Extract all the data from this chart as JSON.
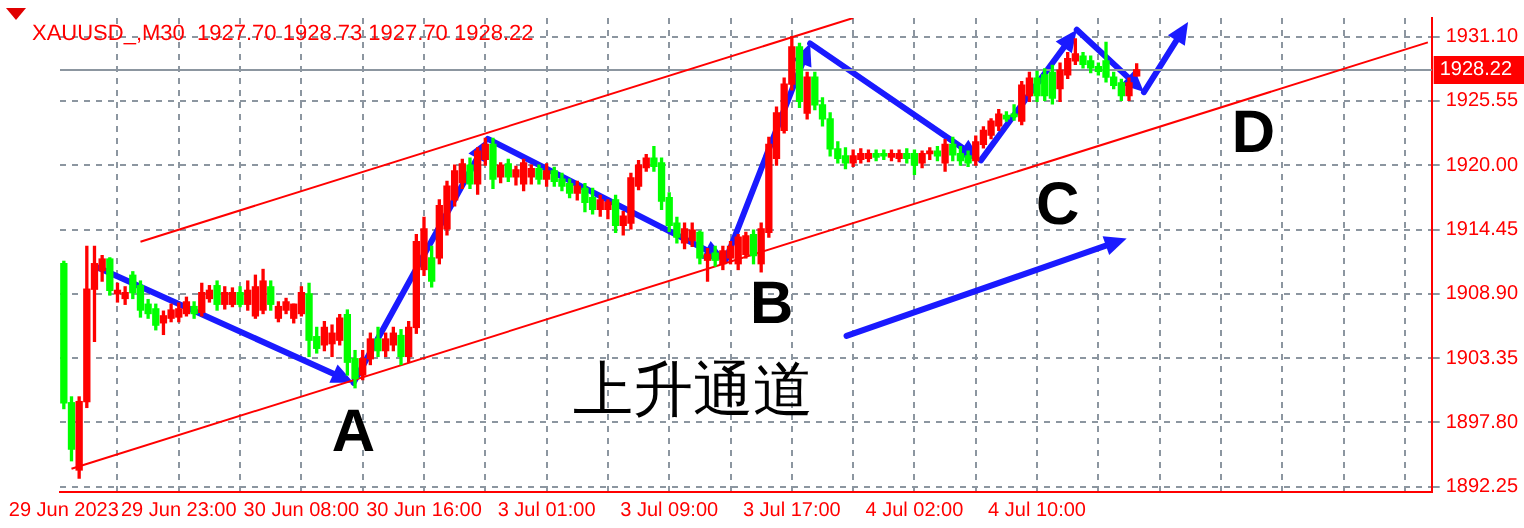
{
  "chart_data": {
    "type": "candlestick",
    "title": "XAUUSD_,M30  1927.70 1928.73 1927.70 1928.22",
    "categories": [
      "29 Jun 2023",
      null,
      null,
      null,
      null,
      null,
      null,
      null,
      null,
      null,
      null,
      null,
      null,
      null,
      null,
      "29 Jun 23:00",
      null,
      null,
      null,
      null,
      null,
      null,
      null,
      null,
      null,
      null,
      null,
      null,
      null,
      null,
      null,
      "30 Jun 08:00",
      null,
      null,
      null,
      null,
      null,
      null,
      null,
      null,
      null,
      null,
      null,
      null,
      null,
      null,
      null,
      "30 Jun 16:00",
      null,
      null,
      null,
      null,
      null,
      null,
      null,
      null,
      null,
      null,
      null,
      null,
      null,
      null,
      null,
      "3 Jul 01:00",
      null,
      null,
      null,
      null,
      null,
      null,
      null,
      null,
      null,
      null,
      null,
      null,
      null,
      null,
      null,
      "3 Jul 09:00",
      null,
      null,
      null,
      null,
      null,
      null,
      null,
      null,
      null,
      null,
      null,
      null,
      null,
      null,
      null,
      "3 Jul 17:00",
      null,
      null,
      null,
      null,
      null,
      null,
      null,
      null,
      null,
      null,
      null,
      null,
      null,
      null,
      null,
      "4 Jul 02:00",
      null,
      null,
      null,
      null,
      null,
      null,
      null,
      null,
      null,
      null,
      null,
      null,
      null,
      null,
      null,
      "4 Jul 10:00",
      null,
      null,
      null,
      null,
      null,
      null,
      null,
      null,
      null,
      null,
      null,
      null,
      null,
      null,
      null,
      null,
      null,
      null,
      null,
      null,
      null,
      null,
      null,
      null,
      null,
      null,
      null,
      null,
      null,
      null,
      null,
      null,
      null,
      null,
      null,
      null,
      null,
      null,
      null,
      null,
      null,
      null,
      null,
      null,
      null,
      null,
      null,
      null,
      null,
      null,
      null
    ],
    "ohlc": [
      [
        1911.5,
        1911.7,
        1899.0,
        1899.5
      ],
      [
        1899.5,
        1900.0,
        1894.5,
        1895.5
      ],
      [
        1893.7,
        1900.0,
        1893.0,
        1899.6
      ],
      [
        1899.6,
        1913.0,
        1899.1,
        1909.3
      ],
      [
        1909.3,
        1913.0,
        1904.8,
        1911.5
      ],
      [
        1910.9,
        1912.2,
        1910.0,
        1911.9
      ],
      [
        1911.9,
        1912.0,
        1908.8,
        1909.2
      ],
      [
        1908.9,
        1909.8,
        1908.2,
        1909.2
      ],
      [
        1908.5,
        1909.5,
        1908.0,
        1909.0
      ],
      [
        1910.5,
        1910.8,
        1908.5,
        1909.0
      ],
      [
        1909.6,
        1910.0,
        1906.9,
        1907.5
      ],
      [
        1908.0,
        1908.4,
        1906.8,
        1907.2
      ],
      [
        1907.6,
        1908.0,
        1905.8,
        1906.2
      ],
      [
        1906.4,
        1907.4,
        1905.4,
        1907.0
      ],
      [
        1906.8,
        1908.0,
        1906.5,
        1907.5
      ],
      [
        1906.9,
        1908.1,
        1906.5,
        1907.6
      ],
      [
        1907.2,
        1908.6,
        1907.0,
        1908.2
      ],
      [
        1907.8,
        1908.2,
        1906.8,
        1907.2
      ],
      [
        1907.3,
        1909.8,
        1907.0,
        1909.0
      ],
      [
        1908.5,
        1909.6,
        1908.2,
        1909.2
      ],
      [
        1909.6,
        1910.0,
        1907.5,
        1908.0
      ],
      [
        1908.0,
        1909.5,
        1907.6,
        1909.0
      ],
      [
        1908.0,
        1909.4,
        1907.8,
        1909.0
      ],
      [
        1909.0,
        1909.5,
        1907.8,
        1908.0
      ],
      [
        1908.0,
        1910.0,
        1907.5,
        1909.2
      ],
      [
        1907.0,
        1910.5,
        1906.8,
        1909.5
      ],
      [
        1907.5,
        1911.0,
        1907.2,
        1910.0
      ],
      [
        1909.5,
        1910.0,
        1907.5,
        1908.0
      ],
      [
        1906.8,
        1908.2,
        1906.5,
        1907.8
      ],
      [
        1907.5,
        1908.5,
        1907.2,
        1908.2
      ],
      [
        1906.8,
        1908.0,
        1906.4,
        1908.0
      ],
      [
        1907.2,
        1909.5,
        1907.0,
        1909.0
      ],
      [
        1908.9,
        1909.8,
        1903.5,
        1904.9
      ],
      [
        1905.2,
        1906.0,
        1903.8,
        1904.2
      ],
      [
        1904.5,
        1906.5,
        1904.0,
        1906.0
      ],
      [
        1904.6,
        1906.2,
        1903.5,
        1905.5
      ],
      [
        1904.9,
        1907.1,
        1904.5,
        1906.8
      ],
      [
        1907.1,
        1907.5,
        1901.9,
        1903.0
      ],
      [
        1903.3,
        1904.0,
        1900.8,
        1901.6
      ],
      [
        1901.9,
        1904.0,
        1901.5,
        1903.3
      ],
      [
        1903.3,
        1905.5,
        1902.8,
        1905.0
      ],
      [
        1905.0,
        1906.0,
        1903.5,
        1904.0
      ],
      [
        1904.0,
        1905.5,
        1903.5,
        1905.0
      ],
      [
        1904.5,
        1906.0,
        1904.0,
        1905.5
      ],
      [
        1905.3,
        1905.8,
        1902.8,
        1903.5
      ],
      [
        1903.5,
        1906.5,
        1903.0,
        1906.0
      ],
      [
        1906.0,
        1914.0,
        1905.5,
        1913.4
      ],
      [
        1911.0,
        1915.5,
        1910.5,
        1914.5
      ],
      [
        1912.0,
        1913.0,
        1909.5,
        1910.0
      ],
      [
        1912.0,
        1917.0,
        1911.5,
        1916.5
      ],
      [
        1914.5,
        1918.6,
        1914.0,
        1918.2
      ],
      [
        1917.0,
        1920.0,
        1916.5,
        1919.5
      ],
      [
        1918.5,
        1920.5,
        1918.0,
        1920.1
      ],
      [
        1920.0,
        1920.6,
        1918.0,
        1918.4
      ],
      [
        1918.4,
        1921.5,
        1917.5,
        1921.2
      ],
      [
        1920.5,
        1922.3,
        1920.0,
        1921.8
      ],
      [
        1921.8,
        1922.3,
        1918.0,
        1918.8
      ],
      [
        1919.0,
        1920.2,
        1918.5,
        1920.0
      ],
      [
        1920.1,
        1920.5,
        1918.6,
        1919.0
      ],
      [
        1919.0,
        1919.9,
        1918.3,
        1919.6
      ],
      [
        1918.4,
        1920.5,
        1917.8,
        1920.2
      ],
      [
        1919.0,
        1920.0,
        1918.4,
        1919.7
      ],
      [
        1919.7,
        1920.0,
        1918.4,
        1918.8
      ],
      [
        1918.8,
        1920.1,
        1918.2,
        1919.5
      ],
      [
        1919.5,
        1919.8,
        1918.2,
        1918.6
      ],
      [
        1918.8,
        1919.3,
        1917.8,
        1918.2
      ],
      [
        1918.4,
        1918.8,
        1917.2,
        1917.6
      ],
      [
        1917.6,
        1918.6,
        1917.0,
        1918.2
      ],
      [
        1918.0,
        1918.4,
        1916.0,
        1916.8
      ],
      [
        1917.2,
        1918.0,
        1915.8,
        1916.2
      ],
      [
        1916.2,
        1917.4,
        1915.6,
        1917.0
      ],
      [
        1916.2,
        1917.0,
        1915.4,
        1916.8
      ],
      [
        1917.0,
        1917.4,
        1914.2,
        1914.8
      ],
      [
        1914.8,
        1916.0,
        1914.0,
        1915.6
      ],
      [
        1915.0,
        1919.3,
        1914.5,
        1918.9
      ],
      [
        1918.2,
        1920.4,
        1917.9,
        1920.0
      ],
      [
        1919.8,
        1920.9,
        1919.5,
        1920.6
      ],
      [
        1920.6,
        1921.6,
        1919.5,
        1919.9
      ],
      [
        1920.2,
        1920.6,
        1916.2,
        1916.9
      ],
      [
        1917.2,
        1917.6,
        1914.3,
        1914.8
      ],
      [
        1915.0,
        1915.5,
        1913.3,
        1913.8
      ],
      [
        1913.3,
        1915.0,
        1912.8,
        1914.5
      ],
      [
        1913.5,
        1915.0,
        1913.0,
        1914.4
      ],
      [
        1914.2,
        1914.3,
        1911.5,
        1912.0
      ],
      [
        1911.8,
        1912.8,
        1910.0,
        1912.3
      ],
      [
        1912.4,
        1913.0,
        1911.3,
        1911.8
      ],
      [
        1911.5,
        1913.0,
        1911.0,
        1912.6
      ],
      [
        1912.0,
        1913.4,
        1911.5,
        1913.0
      ],
      [
        1911.5,
        1914.0,
        1911.0,
        1913.8
      ],
      [
        1912.3,
        1914.2,
        1912.0,
        1913.9
      ],
      [
        1914.0,
        1914.4,
        1911.5,
        1912.2
      ],
      [
        1911.5,
        1915.0,
        1910.8,
        1914.5
      ],
      [
        1914.2,
        1922.4,
        1913.8,
        1921.8
      ],
      [
        1920.6,
        1925.0,
        1920.0,
        1924.5
      ],
      [
        1923.0,
        1927.5,
        1922.8,
        1927.0
      ],
      [
        1927.0,
        1931.1,
        1926.5,
        1930.2
      ],
      [
        1930.2,
        1930.5,
        1925.0,
        1925.5
      ],
      [
        1924.5,
        1928.0,
        1924.0,
        1927.6
      ],
      [
        1927.6,
        1928.0,
        1924.8,
        1925.2
      ],
      [
        1925.2,
        1925.8,
        1923.4,
        1924.0
      ],
      [
        1924.0,
        1924.5,
        1920.8,
        1921.4
      ],
      [
        1921.4,
        1922.0,
        1920.2,
        1920.6
      ],
      [
        1920.8,
        1921.5,
        1919.7,
        1920.2
      ],
      [
        1920.2,
        1921.3,
        1919.9,
        1920.8
      ],
      [
        1920.5,
        1921.4,
        1920.2,
        1921.0
      ],
      [
        1920.6,
        1921.3,
        1920.3,
        1921.0
      ],
      [
        1921.0,
        1921.3,
        1920.4,
        1920.7
      ],
      [
        1921.0,
        1921.3,
        1920.5,
        1920.8
      ],
      [
        1920.7,
        1921.3,
        1920.4,
        1921.0
      ],
      [
        1920.6,
        1921.3,
        1920.3,
        1921.0
      ],
      [
        1921.0,
        1921.4,
        1920.2,
        1920.6
      ],
      [
        1921.0,
        1921.3,
        1919.2,
        1920.0
      ],
      [
        1920.2,
        1921.2,
        1919.8,
        1921.0
      ],
      [
        1921.0,
        1921.5,
        1920.5,
        1921.2
      ],
      [
        1921.2,
        1921.6,
        1920.4,
        1920.8
      ],
      [
        1920.2,
        1922.2,
        1919.5,
        1921.8
      ],
      [
        1921.8,
        1922.4,
        1920.4,
        1920.9
      ],
      [
        1921.0,
        1921.6,
        1920.0,
        1920.4
      ],
      [
        1920.8,
        1921.2,
        1919.9,
        1920.2
      ],
      [
        1920.4,
        1922.5,
        1920.0,
        1922.0
      ],
      [
        1921.8,
        1923.3,
        1921.5,
        1923.0
      ],
      [
        1922.6,
        1924.0,
        1922.3,
        1923.8
      ],
      [
        1923.4,
        1924.8,
        1923.0,
        1924.4
      ],
      [
        1924.3,
        1924.6,
        1923.8,
        1924.0
      ],
      [
        1924.4,
        1925.2,
        1923.9,
        1924.2
      ],
      [
        1923.8,
        1927.2,
        1923.5,
        1926.9
      ],
      [
        1926.0,
        1928.0,
        1925.5,
        1927.5
      ],
      [
        1927.5,
        1928.1,
        1925.5,
        1926.0
      ],
      [
        1927.8,
        1928.3,
        1925.6,
        1926.0
      ],
      [
        1928.0,
        1928.6,
        1925.3,
        1925.8
      ],
      [
        1926.6,
        1928.8,
        1925.5,
        1928.2
      ],
      [
        1927.8,
        1929.7,
        1927.5,
        1929.2
      ],
      [
        1929.0,
        1930.9,
        1928.7,
        1929.6
      ],
      [
        1929.4,
        1929.7,
        1928.4,
        1928.7
      ],
      [
        1929.0,
        1929.4,
        1928.0,
        1928.4
      ],
      [
        1928.5,
        1928.8,
        1927.8,
        1928.1
      ],
      [
        1929.0,
        1930.6,
        1927.2,
        1927.6
      ],
      [
        1927.6,
        1928.0,
        1926.6,
        1926.9
      ],
      [
        1927.1,
        1927.4,
        1925.6,
        1926.0
      ],
      [
        1926.0,
        1927.5,
        1925.6,
        1927.1
      ],
      [
        1927.7,
        1928.73,
        1927.7,
        1928.22
      ],
      null,
      null,
      null,
      null,
      null,
      null,
      null,
      null,
      null,
      null,
      null,
      null,
      null,
      null,
      null,
      null,
      null,
      null,
      null,
      null,
      null,
      null,
      null,
      null,
      null,
      null,
      null,
      null,
      null,
      null,
      null,
      null,
      null,
      null,
      null,
      null,
      null,
      null
    ],
    "colors": [
      "#00ff00",
      "#00ff00",
      "#ff0000",
      "#ff0000",
      "#ff0000",
      "#ff0000",
      "#00ff00",
      "#ff0000",
      "#ff0000",
      "#00ff00",
      "#00ff00",
      "#00ff00",
      "#00ff00",
      "#ff0000",
      "#ff0000",
      "#ff0000",
      "#ff0000",
      "#00ff00",
      "#ff0000",
      "#ff0000",
      "#00ff00",
      "#ff0000",
      "#ff0000",
      "#00ff00",
      "#ff0000",
      "#ff0000",
      "#ff0000",
      "#00ff00",
      "#ff0000",
      "#ff0000",
      "#ff0000",
      "#ff0000",
      "#00ff00",
      "#00ff00",
      "#ff0000",
      "#ff0000",
      "#ff0000",
      "#00ff00",
      "#00ff00",
      "#ff0000",
      "#ff0000",
      "#00ff00",
      "#ff0000",
      "#ff0000",
      "#00ff00",
      "#ff0000",
      "#ff0000",
      "#ff0000",
      "#00ff00",
      "#ff0000",
      "#ff0000",
      "#ff0000",
      "#ff0000",
      "#00ff00",
      "#ff0000",
      "#ff0000",
      "#00ff00",
      "#ff0000",
      "#00ff00",
      "#ff0000",
      "#ff0000",
      "#ff0000",
      "#00ff00",
      "#ff0000",
      "#00ff00",
      "#00ff00",
      "#00ff00",
      "#ff0000",
      "#00ff00",
      "#00ff00",
      "#ff0000",
      "#ff0000",
      "#00ff00",
      "#ff0000",
      "#ff0000",
      "#ff0000",
      "#ff0000",
      "#00ff00",
      "#00ff00",
      "#00ff00",
      "#00ff00",
      "#ff0000",
      "#ff0000",
      "#00ff00",
      "#ff0000",
      "#00ff00",
      "#ff0000",
      "#ff0000",
      "#ff0000",
      "#ff0000",
      "#00ff00",
      "#ff0000",
      "#ff0000",
      "#ff0000",
      "#ff0000",
      "#ff0000",
      "#00ff00",
      "#ff0000",
      "#00ff00",
      "#00ff00",
      "#00ff00",
      "#00ff00",
      "#00ff00",
      "#ff0000",
      "#ff0000",
      "#ff0000",
      "#00ff00",
      "#00ff00",
      "#ff0000",
      "#ff0000",
      "#00ff00",
      "#00ff00",
      "#ff0000",
      "#ff0000",
      "#00ff00",
      "#ff0000",
      "#00ff00",
      "#00ff00",
      "#00ff00",
      "#ff0000",
      "#ff0000",
      "#ff0000",
      "#ff0000",
      "#00ff00",
      "#00ff00",
      "#ff0000",
      "#ff0000",
      "#00ff00",
      "#00ff00",
      "#00ff00",
      "#ff0000",
      "#ff0000",
      "#ff0000",
      "#00ff00",
      "#00ff00",
      "#00ff00",
      "#00ff00",
      "#00ff00",
      "#00ff00",
      "#ff0000",
      "#ff0000",
      null,
      null,
      null,
      null,
      null,
      null,
      null,
      null,
      null,
      null,
      null,
      null,
      null,
      null,
      null,
      null,
      null,
      null,
      null,
      null,
      null,
      null,
      null,
      null,
      null,
      null,
      null,
      null,
      null,
      null,
      null,
      null,
      null,
      null,
      null,
      null,
      null,
      null
    ],
    "series": [
      {
        "type": "line",
        "color": "#ff0000",
        "values": [
          null,
          null,
          null,
          null,
          null,
          null,
          null,
          null,
          null,
          null,
          1913.4,
          null,
          null,
          null,
          null,
          null,
          null,
          null,
          null,
          null,
          null,
          null,
          null,
          null,
          null,
          null,
          null,
          null,
          null,
          null,
          null,
          null,
          null,
          null,
          null,
          null,
          null,
          null,
          null,
          null,
          null,
          null,
          null,
          null,
          null,
          null,
          null,
          null,
          null,
          null,
          null,
          null,
          null,
          null,
          null,
          null,
          null,
          null,
          null,
          null,
          null,
          null,
          null,
          null,
          null,
          null,
          null,
          null,
          null,
          null,
          null,
          null,
          null,
          null,
          null,
          null,
          null,
          null,
          null,
          null,
          null,
          null,
          null,
          null,
          null,
          null,
          null,
          null,
          null,
          null,
          null,
          null,
          null,
          null,
          null,
          null,
          null,
          null,
          null,
          null,
          null,
          null,
          null,
          1932.7,
          null,
          null,
          null,
          null,
          null,
          null,
          null,
          null,
          null,
          null,
          null,
          null,
          null,
          null,
          null,
          null,
          null,
          null,
          null,
          null,
          null,
          null,
          null,
          null,
          null,
          null,
          null,
          null,
          null,
          null,
          null,
          null,
          null,
          null,
          null,
          null,
          null,
          null,
          null,
          null,
          null,
          null,
          null,
          null,
          null,
          null,
          null,
          null,
          null,
          null,
          null,
          null,
          null,
          null,
          null,
          null,
          null,
          null,
          null,
          null,
          null,
          null,
          null,
          null,
          null,
          null,
          null,
          null,
          null,
          null,
          null,
          null,
          null,
          null,
          null
        ]
      },
      {
        "type": "line",
        "color": "#ff0000",
        "values": [
          null,
          1893.8,
          null,
          null,
          null,
          null,
          null,
          null,
          null,
          null,
          null,
          null,
          null,
          null,
          null,
          null,
          null,
          null,
          null,
          null,
          null,
          null,
          null,
          null,
          null,
          null,
          null,
          null,
          null,
          null,
          null,
          null,
          null,
          null,
          null,
          null,
          null,
          null,
          null,
          null,
          null,
          null,
          null,
          null,
          null,
          null,
          null,
          null,
          null,
          null,
          null,
          null,
          null,
          null,
          null,
          null,
          null,
          null,
          null,
          null,
          null,
          null,
          null,
          null,
          null,
          null,
          null,
          null,
          null,
          null,
          null,
          null,
          null,
          null,
          null,
          null,
          null,
          null,
          null,
          null,
          null,
          null,
          null,
          null,
          null,
          null,
          null,
          null,
          null,
          null,
          null,
          null,
          null,
          null,
          null,
          null,
          null,
          null,
          null,
          null,
          null,
          null,
          null,
          null,
          null,
          null,
          null,
          null,
          null,
          null,
          null,
          null,
          null,
          null,
          null,
          null,
          null,
          null,
          null,
          null,
          null,
          null,
          null,
          null,
          null,
          null,
          null,
          null,
          null,
          null,
          null,
          null,
          null,
          null,
          null,
          null,
          null,
          null,
          null,
          null,
          null,
          null,
          null,
          null,
          null,
          null,
          null,
          null,
          null,
          null,
          null,
          null,
          null,
          null,
          null,
          null,
          null,
          null,
          null,
          null,
          null,
          null,
          null,
          null,
          null,
          null,
          null,
          null,
          null,
          null,
          null,
          null,
          null,
          null,
          null,
          null,
          null,
          null,
          1930.6
        ]
      }
    ],
    "ylim": [
      1891.8,
      1932.7
    ],
    "yticks": [
      {
        "value": 1931.1,
        "label": "1931.10"
      },
      1925.55,
      {
        "value": 1920,
        "label": "1920.00"
      },
      1914.45,
      {
        "value": 1908.9,
        "label": "1908.90"
      },
      1903.35,
      {
        "value": 1897.8,
        "label": "1897.80"
      },
      1892.25
    ],
    "ref_lines": [
      {
        "axis": "y",
        "value": 1928.22,
        "label": "1928.22",
        "color": "#8c96a0"
      }
    ],
    "annotations": [
      {
        "text": "A",
        "y": 1900.8
      },
      {
        "text": "B",
        "y": 1911.0
      },
      {
        "text": "C",
        "y": 1919.7
      },
      "D",
      "上升通道"
    ],
    "grid": true
  }
}
